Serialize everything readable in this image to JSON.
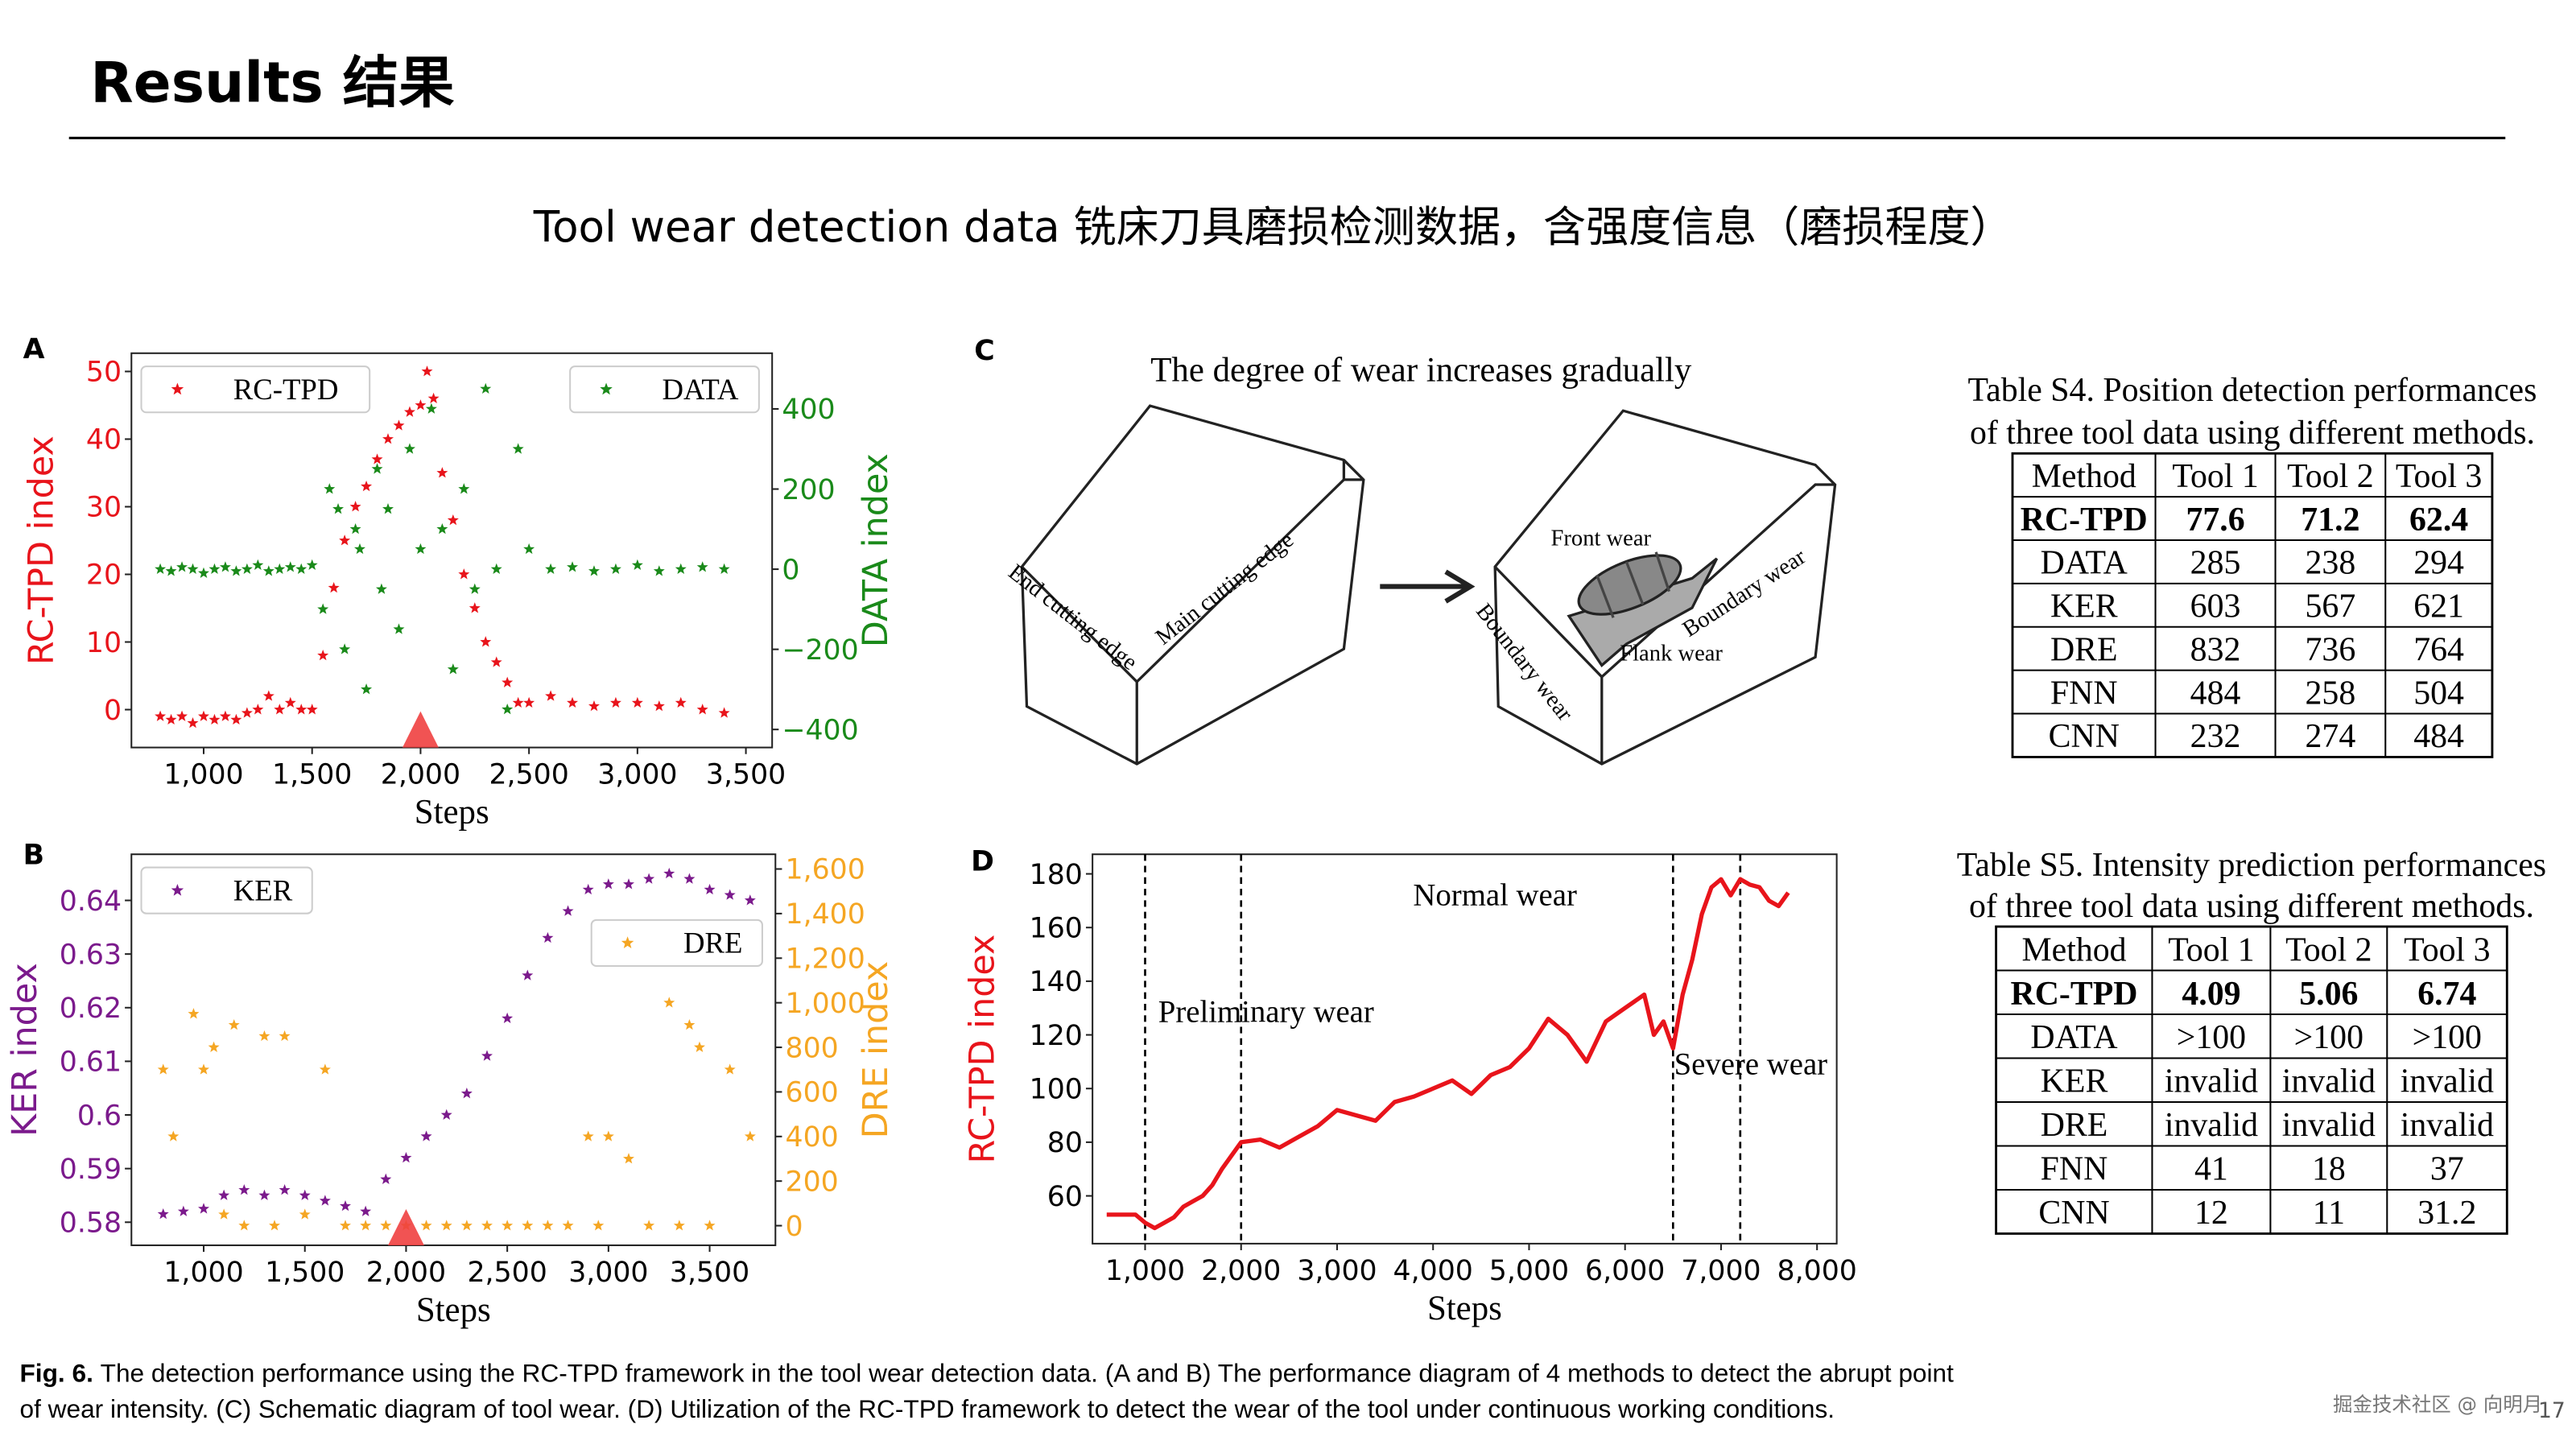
{
  "header": {
    "title": "Results 结果",
    "subtitle": "Tool wear detection data 铣床刀具磨损检测数据，含强度信息（磨损程度）"
  },
  "panels": [
    "A",
    "B",
    "C",
    "D"
  ],
  "chart_data": [
    {
      "type": "scatter",
      "xlabel": "Steps",
      "ylabel": "RC-TPD index",
      "y2label": "DATA index",
      "ylabel_color": "#e8141b",
      "ytick_color": "#e8141b",
      "y2label_color": "#1a8a1a",
      "y2tick_color": "#1a8a1a",
      "xlim": [
        667,
        3621
      ],
      "ylim": [
        -5.6,
        52.7
      ],
      "y2lim": [
        -445,
        539
      ],
      "xticks": [
        {
          "value": 1000,
          "label": "1,000"
        },
        {
          "value": 1500,
          "label": "1,500"
        },
        {
          "value": 2000,
          "label": "2,000"
        },
        {
          "value": 2500,
          "label": "2,500"
        },
        {
          "value": 3000,
          "label": "3,000"
        },
        {
          "value": 3500,
          "label": "3,500"
        }
      ],
      "yticks": [
        0,
        10,
        20,
        30,
        40,
        50
      ],
      "y2ticks": [
        {
          "value": -400,
          "label": "−400"
        },
        {
          "value": -200,
          "label": "−200"
        },
        0,
        200,
        400
      ],
      "change_point": 2000,
      "legend_loc": [
        "upper left",
        "upper right"
      ],
      "series": [
        {
          "name": "RC-TPD",
          "color": "#e8141b",
          "x": [
            800,
            850,
            900,
            950,
            1000,
            1050,
            1100,
            1150,
            1200,
            1250,
            1300,
            1350,
            1400,
            1450,
            1500,
            1550,
            1600,
            1650,
            1700,
            1750,
            1800,
            1850,
            1900,
            1950,
            2000,
            2030,
            2060,
            2100,
            2150,
            2200,
            2250,
            2300,
            2350,
            2400,
            2450,
            2500,
            2600,
            2700,
            2800,
            2900,
            3000,
            3100,
            3200,
            3300,
            3400
          ],
          "values": [
            -1,
            -1.5,
            -1,
            -2,
            -1,
            -1.5,
            -1,
            -1.5,
            -0.5,
            0,
            2,
            0,
            1,
            0,
            0,
            8,
            18,
            25,
            30,
            33,
            37,
            40,
            42,
            44,
            45,
            50,
            46,
            35,
            28,
            20,
            15,
            10,
            7,
            4,
            1,
            1,
            2,
            1,
            0.5,
            1,
            1,
            0.5,
            1,
            0,
            -0.5
          ]
        },
        {
          "name": "DATA",
          "color": "#1a8a1a",
          "axis": "y2",
          "x": [
            800,
            850,
            900,
            950,
            1000,
            1050,
            1100,
            1150,
            1200,
            1250,
            1300,
            1350,
            1400,
            1450,
            1500,
            1550,
            1580,
            1620,
            1650,
            1700,
            1720,
            1750,
            1800,
            1820,
            1850,
            1900,
            1950,
            2000,
            2050,
            2100,
            2150,
            2200,
            2250,
            2300,
            2350,
            2400,
            2450,
            2500,
            2600,
            2700,
            2800,
            2900,
            3000,
            3100,
            3200,
            3300,
            3400
          ],
          "values": [
            0,
            -5,
            5,
            0,
            -10,
            0,
            5,
            -5,
            0,
            10,
            -5,
            0,
            5,
            0,
            10,
            -100,
            200,
            150,
            -200,
            100,
            50,
            -300,
            250,
            -50,
            150,
            -150,
            300,
            50,
            400,
            100,
            -250,
            200,
            -50,
            450,
            0,
            -350,
            300,
            50,
            0,
            5,
            -5,
            0,
            10,
            -5,
            0,
            5,
            0
          ]
        }
      ]
    },
    {
      "type": "scatter",
      "xlabel": "Steps",
      "ylabel": "KER index",
      "y2label": "DRE index",
      "ylabel_color": "#7b1a8c",
      "ytick_color": "#7b1a8c",
      "y2label_color": "#f5a623",
      "y2tick_color": "#f5a623",
      "xlim": [
        643,
        3825
      ],
      "ylim": [
        0.5757,
        0.6486
      ],
      "y2lim": [
        -88,
        1666
      ],
      "xticks": [
        {
          "value": 1000,
          "label": "1,000"
        },
        {
          "value": 1500,
          "label": "1,500"
        },
        {
          "value": 2000,
          "label": "2,000"
        },
        {
          "value": 2500,
          "label": "2,500"
        },
        {
          "value": 3000,
          "label": "3,000"
        },
        {
          "value": 3500,
          "label": "3,500"
        }
      ],
      "yticks": [
        0.58,
        0.59,
        0.6,
        0.61,
        0.62,
        0.63,
        0.64
      ],
      "y2ticks": [
        0,
        200,
        400,
        600,
        800,
        {
          "value": 1000,
          "label": "1,000"
        },
        {
          "value": 1200,
          "label": "1,200"
        },
        {
          "value": 1400,
          "label": "1,400"
        },
        {
          "value": 1600,
          "label": "1,600"
        }
      ],
      "change_point": 2000,
      "legend_loc": [
        "upper left",
        "upper right"
      ],
      "series": [
        {
          "name": "KER",
          "color": "#7b1a8c",
          "x": [
            800,
            900,
            1000,
            1100,
            1200,
            1300,
            1400,
            1500,
            1600,
            1700,
            1800,
            1900,
            2000,
            2100,
            2200,
            2300,
            2400,
            2500,
            2600,
            2700,
            2800,
            2900,
            3000,
            3100,
            3200,
            3300,
            3400,
            3500,
            3600,
            3700
          ],
          "values": [
            0.5815,
            0.582,
            0.5825,
            0.585,
            0.586,
            0.585,
            0.586,
            0.585,
            0.584,
            0.583,
            0.582,
            0.588,
            0.592,
            0.596,
            0.6,
            0.604,
            0.611,
            0.618,
            0.626,
            0.633,
            0.638,
            0.642,
            0.643,
            0.643,
            0.644,
            0.645,
            0.644,
            0.642,
            0.641,
            0.64
          ]
        },
        {
          "name": "DRE",
          "color": "#f5a623",
          "axis": "y2",
          "x": [
            800,
            850,
            950,
            1000,
            1050,
            1100,
            1150,
            1200,
            1300,
            1350,
            1400,
            1500,
            1600,
            1700,
            1800,
            1900,
            2000,
            2100,
            2200,
            2300,
            2400,
            2500,
            2600,
            2700,
            2800,
            2900,
            2950,
            3000,
            3100,
            3200,
            3300,
            3350,
            3400,
            3450,
            3500,
            3600,
            3700
          ],
          "values": [
            700,
            400,
            950,
            700,
            800,
            50,
            900,
            0,
            850,
            0,
            850,
            50,
            700,
            0,
            0,
            0,
            0,
            0,
            0,
            0,
            0,
            0,
            0,
            0,
            0,
            400,
            0,
            400,
            300,
            0,
            1000,
            0,
            900,
            800,
            0,
            700,
            400
          ]
        }
      ]
    },
    {
      "type": "line",
      "xlabel": "Steps",
      "ylabel": "RC-TPD index",
      "ylabel_color": "#e8141b",
      "ytick_color": "#000000",
      "xlim": [
        452,
        8205
      ],
      "ylim": [
        42.2,
        187.3
      ],
      "xticks": [
        {
          "value": 1000,
          "label": "1,000"
        },
        {
          "value": 2000,
          "label": "2,000"
        },
        {
          "value": 3000,
          "label": "3,000"
        },
        {
          "value": 4000,
          "label": "4,000"
        },
        {
          "value": 5000,
          "label": "5,000"
        },
        {
          "value": 6000,
          "label": "6,000"
        },
        {
          "value": 7000,
          "label": "7,000"
        },
        {
          "value": 8000,
          "label": "8,000"
        }
      ],
      "yticks": [
        60,
        80,
        100,
        120,
        140,
        160,
        180
      ],
      "phase_lines": [
        1000,
        2000,
        6500,
        7200
      ],
      "annotations": [
        "Preliminary wear",
        "Normal wear",
        "Severe wear"
      ],
      "series": [
        {
          "color": "#e8141b",
          "x": [
            600,
            700,
            800,
            900,
            1000,
            1100,
            1200,
            1300,
            1400,
            1500,
            1600,
            1700,
            1800,
            1900,
            2000,
            2200,
            2400,
            2600,
            2800,
            3000,
            3200,
            3400,
            3600,
            3800,
            4000,
            4200,
            4400,
            4600,
            4800,
            5000,
            5200,
            5400,
            5600,
            5800,
            6000,
            6200,
            6300,
            6400,
            6500,
            6600,
            6700,
            6800,
            6900,
            7000,
            7100,
            7200,
            7300,
            7400,
            7500,
            7600,
            7700
          ],
          "values": [
            53,
            53,
            53,
            53,
            50,
            48,
            50,
            52,
            56,
            58,
            60,
            64,
            70,
            75,
            80,
            81,
            78,
            82,
            86,
            92,
            90,
            88,
            95,
            97,
            100,
            103,
            98,
            105,
            108,
            115,
            126,
            120,
            110,
            125,
            130,
            135,
            120,
            125,
            115,
            135,
            148,
            165,
            175,
            178,
            172,
            178,
            176,
            175,
            170,
            168,
            173
          ]
        }
      ]
    }
  ],
  "diagram": {
    "title": "The degree of wear increases gradually",
    "labels": [
      "End cutting edge",
      "Main cutting edge",
      "Front wear",
      "Boundary wear",
      "Boundary wear",
      "Flank wear"
    ]
  },
  "tables": [
    {
      "title": [
        "Table S4. Position detection performances",
        "of three tool data using different methods."
      ],
      "header": [
        "Method",
        "Tool 1",
        "Tool 2",
        "Tool 3"
      ],
      "rows": [
        [
          "RC-TPD",
          77.6,
          71.2,
          62.4
        ],
        [
          "DATA",
          285,
          238,
          294
        ],
        [
          "KER",
          603,
          567,
          621
        ],
        [
          "DRE",
          832,
          736,
          764
        ],
        [
          "FNN",
          484,
          258,
          504
        ],
        [
          "CNN",
          232,
          274,
          484
        ]
      ]
    },
    {
      "title": [
        "Table S5. Intensity prediction performances",
        "of three tool data using different methods."
      ],
      "header": [
        "Method",
        "Tool 1",
        "Tool 2",
        "Tool 3"
      ],
      "rows": [
        [
          "RC-TPD",
          4.09,
          5.06,
          6.74
        ],
        [
          "DATA",
          ">100",
          ">100",
          ">100"
        ],
        [
          "KER",
          "invalid",
          "invalid",
          "invalid"
        ],
        [
          "DRE",
          "invalid",
          "invalid",
          "invalid"
        ],
        [
          "FNN",
          41,
          18,
          37
        ],
        [
          "CNN",
          12,
          11,
          31.2
        ]
      ]
    }
  ],
  "caption": {
    "label": "Fig. 6.",
    "lines": [
      "The detection performance using the RC-TPD framework in the tool wear detection data. (A and B) The performance diagram of 4 methods to detect the abrupt point",
      "of wear intensity. (C) Schematic diagram of tool wear. (D) Utilization of the RC-TPD framework to detect the wear of the tool under continuous working conditions."
    ]
  },
  "watermark": "掘金技术社区 @ 向明月",
  "page_number": 17
}
